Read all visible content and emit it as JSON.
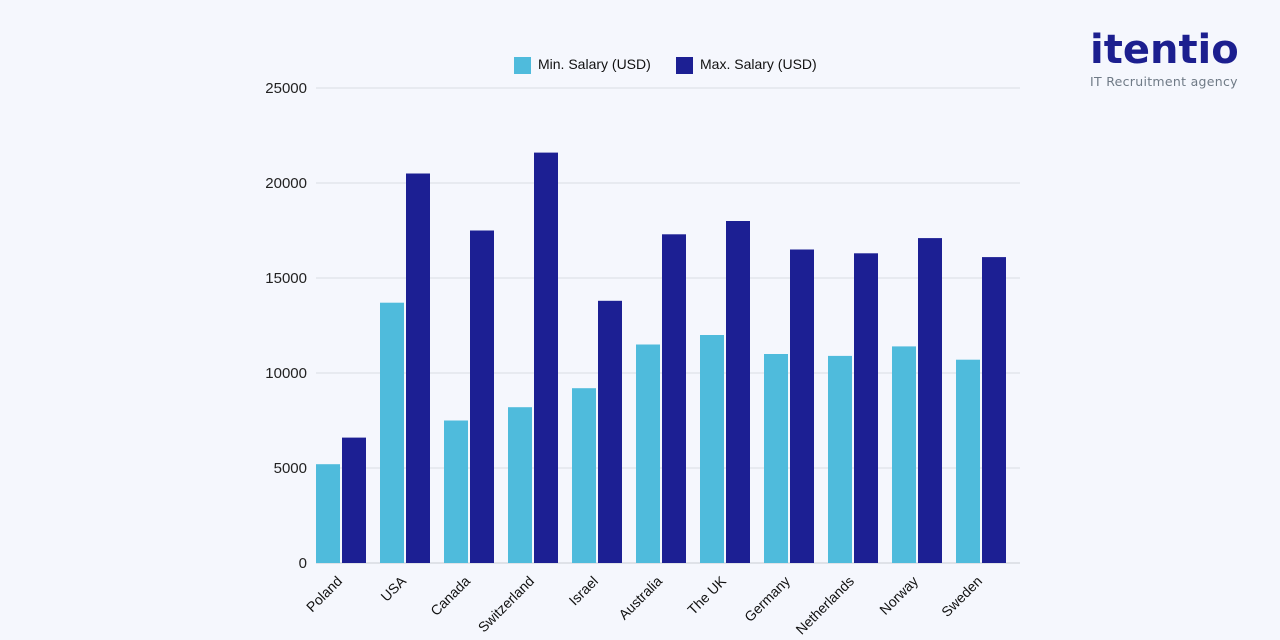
{
  "brand": {
    "name": "itentio",
    "tagline": "IT Recruitment agency"
  },
  "chart_data": {
    "type": "bar",
    "title": "",
    "xlabel": "",
    "ylabel": "",
    "categories": [
      "Poland",
      "USA",
      "Canada",
      "Switzerland",
      "Israel",
      "Australia",
      "The UK",
      "Germany",
      "Netherlands",
      "Norway",
      "Sweden"
    ],
    "series": [
      {
        "name": "Min. Salary (USD)",
        "color": "#4fbbdc",
        "values": [
          5200,
          13700,
          7500,
          8200,
          9200,
          11500,
          12000,
          11000,
          10900,
          11400,
          10700
        ]
      },
      {
        "name": "Max. Salary (USD)",
        "color": "#1c1f93",
        "values": [
          6600,
          20500,
          17500,
          21600,
          13800,
          17300,
          18000,
          16500,
          16300,
          17100,
          16100
        ]
      }
    ],
    "ylim": [
      0,
      25000
    ],
    "yticks": [
      0,
      5000,
      10000,
      15000,
      20000,
      25000
    ],
    "grid": true,
    "legend_position": "top-center"
  }
}
